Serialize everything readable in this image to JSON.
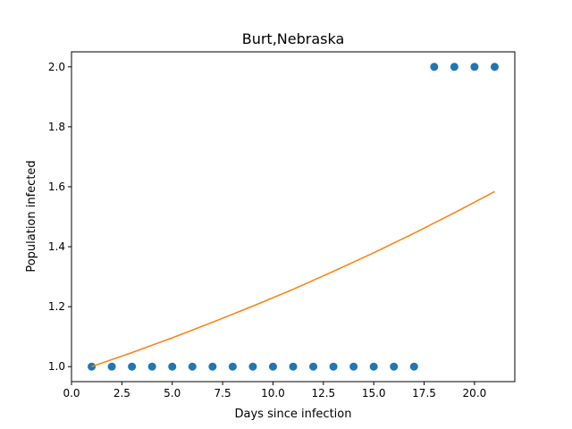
{
  "chart_data": {
    "type": "scatter",
    "title": "Burt,Nebraska",
    "xlabel": "Days since infection",
    "ylabel": "Population infected",
    "xlim": [
      0,
      22
    ],
    "ylim": [
      0.95,
      2.05
    ],
    "xticks": [
      0.0,
      2.5,
      5.0,
      7.5,
      10.0,
      12.5,
      15.0,
      17.5,
      20.0
    ],
    "xtick_labels": [
      "0.0",
      "2.5",
      "5.0",
      "7.5",
      "10.0",
      "12.5",
      "15.0",
      "17.5",
      "20.0"
    ],
    "yticks": [
      1.0,
      1.2,
      1.4,
      1.6,
      1.8,
      2.0
    ],
    "ytick_labels": [
      "1.0",
      "1.2",
      "1.4",
      "1.6",
      "1.8",
      "2.0"
    ],
    "grid": false,
    "series": [
      {
        "type": "scatter",
        "color": "#1f77b4",
        "x": [
          1,
          2,
          3,
          4,
          5,
          6,
          7,
          8,
          9,
          10,
          11,
          12,
          13,
          14,
          15,
          16,
          17,
          18,
          19,
          20,
          21
        ],
        "y": [
          1,
          1,
          1,
          1,
          1,
          1,
          1,
          1,
          1,
          1,
          1,
          1,
          1,
          1,
          1,
          1,
          1,
          2,
          2,
          2,
          2
        ]
      },
      {
        "type": "line",
        "color": "#ff7f0e",
        "x": [
          1,
          3,
          5,
          7,
          9,
          11,
          13,
          15,
          17,
          19,
          21
        ],
        "y": [
          1.0,
          1.047,
          1.096,
          1.148,
          1.202,
          1.258,
          1.318,
          1.38,
          1.445,
          1.513,
          1.584
        ]
      }
    ]
  }
}
